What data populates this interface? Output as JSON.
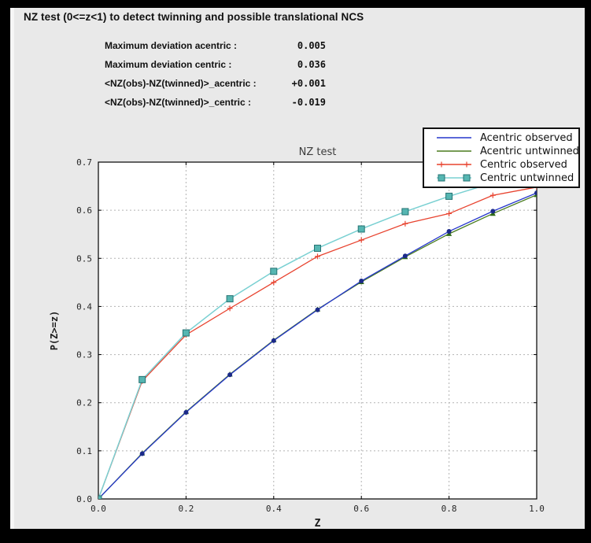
{
  "header": {
    "title": "NZ test (0<=z<1) to detect twinning and possible translational NCS"
  },
  "stats": {
    "rows": [
      {
        "label": "Maximum deviation acentric :",
        "value": "0.005"
      },
      {
        "label": "Maximum deviation centric :",
        "value": "0.036"
      },
      {
        "label": "<NZ(obs)-NZ(twinned)>_acentric :",
        "value": "+0.001"
      },
      {
        "label": "<NZ(obs)-NZ(twinned)>_centric :",
        "value": "-0.019"
      }
    ]
  },
  "colors": {
    "window_background": "#000000",
    "panel_background": "#e9e9e9",
    "panel_highlight": "#f6f6f6",
    "plot_background": "#ffffff",
    "grid": "#b3b3b3",
    "frame": "#000000",
    "acentric_observed": "#2536cc",
    "acentric_observed_marker": "#1b2a8a",
    "acentric_untwinned": "#4a7c1f",
    "acentric_untwinned_marker": "#2f6b16",
    "centric_observed": "#e8432f",
    "centric_untwinned_line": "#79d0d2",
    "centric_untwinned_marker": "#56b6b2",
    "centric_untwinned_marker_edge": "#267373"
  },
  "chart_data": {
    "type": "line",
    "title": "NZ test",
    "xlabel": "Z",
    "ylabel": "P(Z>=z)",
    "xlim": [
      0.0,
      1.0
    ],
    "ylim": [
      0.0,
      0.7
    ],
    "x_tick_values": [
      0.0,
      0.2,
      0.4,
      0.6,
      0.8,
      1.0
    ],
    "x_tick_labels": [
      "0.0",
      "0.2",
      "0.4",
      "0.6",
      "0.8",
      "1.0"
    ],
    "y_tick_values": [
      0.0,
      0.1,
      0.2,
      0.3,
      0.4,
      0.5,
      0.6,
      0.7
    ],
    "y_tick_labels": [
      "0.0",
      "0.1",
      "0.2",
      "0.3",
      "0.4",
      "0.5",
      "0.6",
      "0.7"
    ],
    "grid": "dashed",
    "legend_position": "upper right",
    "x": [
      0.0,
      0.1,
      0.2,
      0.3,
      0.4,
      0.5,
      0.6,
      0.7,
      0.8,
      0.9,
      1.0
    ],
    "series": [
      {
        "name": "Acentric observed",
        "color": "#2536cc",
        "marker": "circle",
        "marker_color": "#1b2a8a",
        "legend_marker": "none",
        "values": [
          0.0,
          0.094,
          0.18,
          0.258,
          0.329,
          0.393,
          0.453,
          0.505,
          0.556,
          0.598,
          0.636
        ]
      },
      {
        "name": "Acentric untwinned",
        "color": "#4a7c1f",
        "marker": "triangle",
        "marker_color": "#2f6b16",
        "legend_marker": "none",
        "values": [
          0.0,
          0.095,
          0.181,
          0.259,
          0.33,
          0.394,
          0.451,
          0.503,
          0.551,
          0.593,
          0.632
        ]
      },
      {
        "name": "Centric observed",
        "color": "#e8432f",
        "marker": "plus",
        "marker_color": "#e8432f",
        "legend_marker": "plus",
        "values": [
          0.0,
          0.245,
          0.341,
          0.396,
          0.45,
          0.504,
          0.538,
          0.572,
          0.593,
          0.631,
          0.648
        ]
      },
      {
        "name": "Centric untwinned",
        "color": "#79d0d2",
        "marker": "square",
        "marker_color": "#56b6b2",
        "marker_edge": "#267373",
        "legend_marker": "square",
        "values": [
          0.0,
          0.248,
          0.345,
          0.416,
          0.473,
          0.521,
          0.561,
          0.597,
          0.629,
          0.657,
          0.683
        ]
      }
    ]
  }
}
